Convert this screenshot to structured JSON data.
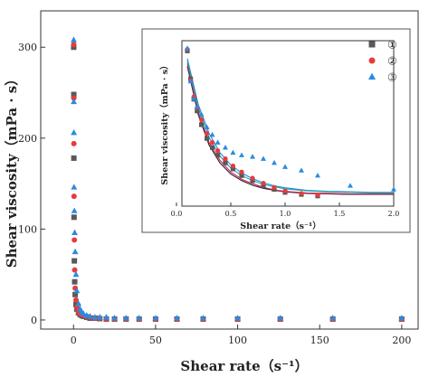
{
  "chart_data": [
    {
      "type": "scatter",
      "xlabel": "Shear rate（s⁻¹）",
      "ylabel": "Shear viscosity（mPa · s）",
      "xlim": [
        -20,
        210
      ],
      "ylim": [
        -10,
        340
      ],
      "xticks": [
        0,
        50,
        100,
        150,
        200
      ],
      "yticks": [
        0,
        100,
        200,
        300
      ],
      "series": [
        {
          "name": "①",
          "color": "#595959",
          "marker": "square",
          "points": [
            [
              0.1,
              300
            ],
            [
              0.15,
              248
            ],
            [
              0.2,
              178
            ],
            [
              0.3,
              113
            ],
            [
              0.5,
              65
            ],
            [
              0.7,
              42
            ],
            [
              1,
              28
            ],
            [
              1.5,
              17
            ],
            [
              2,
              12
            ],
            [
              3,
              8
            ],
            [
              4,
              6
            ],
            [
              5,
              5
            ],
            [
              6,
              4
            ],
            [
              8,
              3
            ],
            [
              10,
              2
            ],
            [
              13,
              2
            ],
            [
              16,
              1.5
            ],
            [
              20,
              1
            ],
            [
              25,
              1
            ],
            [
              32,
              1
            ],
            [
              40,
              1
            ],
            [
              50,
              1
            ],
            [
              63,
              1
            ],
            [
              79,
              1
            ],
            [
              100,
              1
            ],
            [
              126,
              1
            ],
            [
              158,
              1
            ],
            [
              200,
              1
            ]
          ]
        },
        {
          "name": "②",
          "color": "#e83b3b",
          "marker": "circle",
          "points": [
            [
              0.1,
              303
            ],
            [
              0.15,
              244
            ],
            [
              0.2,
              194
            ],
            [
              0.3,
              136
            ],
            [
              0.5,
              88
            ],
            [
              0.7,
              55
            ],
            [
              1,
              35
            ],
            [
              1.5,
              22
            ],
            [
              2,
              14
            ],
            [
              3,
              9
            ],
            [
              4,
              7
            ],
            [
              5,
              6
            ],
            [
              6,
              5
            ],
            [
              8,
              4
            ],
            [
              10,
              3
            ],
            [
              13,
              2
            ],
            [
              16,
              2
            ],
            [
              20,
              1
            ],
            [
              25,
              1
            ],
            [
              32,
              1
            ],
            [
              40,
              1
            ],
            [
              50,
              1
            ],
            [
              63,
              1
            ],
            [
              79,
              1
            ],
            [
              100,
              1
            ],
            [
              126,
              1
            ],
            [
              158,
              1
            ],
            [
              200,
              1
            ]
          ]
        },
        {
          "name": "③",
          "color": "#2a8be0",
          "marker": "triangle",
          "points": [
            [
              0.1,
              308
            ],
            [
              0.15,
              240
            ],
            [
              0.2,
              206
            ],
            [
              0.3,
              146
            ],
            [
              0.5,
              120
            ],
            [
              0.7,
              96
            ],
            [
              1,
              75
            ],
            [
              1.5,
              50
            ],
            [
              2,
              32
            ],
            [
              3,
              18
            ],
            [
              4,
              12
            ],
            [
              5,
              9
            ],
            [
              6,
              7
            ],
            [
              8,
              5
            ],
            [
              10,
              4
            ],
            [
              13,
              3
            ],
            [
              16,
              3
            ],
            [
              20,
              3
            ],
            [
              25,
              2
            ],
            [
              32,
              2
            ],
            [
              40,
              2
            ],
            [
              50,
              2
            ],
            [
              63,
              2
            ],
            [
              79,
              2
            ],
            [
              100,
              2
            ],
            [
              126,
              2
            ],
            [
              158,
              2
            ],
            [
              200,
              2
            ]
          ]
        }
      ]
    },
    {
      "type": "scatter",
      "xlabel": "Shear rate（s⁻¹）",
      "ylabel": "Shear viscosity（mPa · s）",
      "xlim": [
        0.05,
        2.0
      ],
      "ylim": [
        -5,
        320
      ],
      "xticks": [
        "0.0",
        "0.5",
        "1.0",
        "1.5",
        "2.0"
      ],
      "xtick_values": [
        0,
        0.5,
        1.0,
        1.5,
        2.0
      ],
      "series": [
        {
          "name": "①",
          "color": "#595959",
          "marker": "square",
          "points": [
            [
              0.1,
              300
            ],
            [
              0.13,
              245
            ],
            [
              0.16,
              205
            ],
            [
              0.19,
              182
            ],
            [
              0.23,
              155
            ],
            [
              0.28,
              128
            ],
            [
              0.33,
              110
            ],
            [
              0.38,
              95
            ],
            [
              0.45,
              80
            ],
            [
              0.52,
              68
            ],
            [
              0.6,
              55
            ],
            [
              0.7,
              45
            ],
            [
              0.8,
              35
            ],
            [
              0.9,
              28
            ],
            [
              1.0,
              22
            ],
            [
              1.15,
              18
            ],
            [
              1.3,
              15
            ]
          ]
        },
        {
          "name": "②",
          "color": "#e83b3b",
          "marker": "circle",
          "points": [
            [
              0.1,
              303
            ],
            [
              0.13,
              242
            ],
            [
              0.16,
              210
            ],
            [
              0.19,
              188
            ],
            [
              0.23,
              165
            ],
            [
              0.28,
              138
            ],
            [
              0.33,
              120
            ],
            [
              0.38,
              104
            ],
            [
              0.45,
              88
            ],
            [
              0.52,
              74
            ],
            [
              0.6,
              62
            ],
            [
              0.7,
              50
            ],
            [
              0.8,
              40
            ],
            [
              0.9,
              32
            ],
            [
              1.0,
              25
            ],
            [
              1.15,
              20
            ],
            [
              1.3,
              17
            ]
          ]
        },
        {
          "name": "③",
          "color": "#2a8be0",
          "marker": "triangle",
          "points": [
            [
              0.1,
              305
            ],
            [
              0.13,
              240
            ],
            [
              0.16,
              206
            ],
            [
              0.19,
              190
            ],
            [
              0.23,
              175
            ],
            [
              0.28,
              150
            ],
            [
              0.33,
              135
            ],
            [
              0.38,
              120
            ],
            [
              0.45,
              110
            ],
            [
              0.52,
              100
            ],
            [
              0.6,
              95
            ],
            [
              0.7,
              92
            ],
            [
              0.8,
              88
            ],
            [
              0.9,
              80
            ],
            [
              1.0,
              72
            ],
            [
              1.15,
              65
            ],
            [
              1.3,
              55
            ],
            [
              1.6,
              35
            ],
            [
              2.0,
              28
            ]
          ]
        }
      ],
      "fits": [
        {
          "color": "#222222",
          "points": [
            [
              0.1,
              270
            ],
            [
              0.2,
              175
            ],
            [
              0.3,
              115
            ],
            [
              0.4,
              80
            ],
            [
              0.5,
              58
            ],
            [
              0.6,
              45
            ],
            [
              0.7,
              36
            ],
            [
              0.8,
              30
            ],
            [
              0.9,
              26
            ],
            [
              1.0,
              23
            ],
            [
              1.2,
              20
            ],
            [
              1.4,
              19
            ],
            [
              1.6,
              18
            ],
            [
              1.8,
              18
            ],
            [
              2.0,
              18
            ]
          ]
        },
        {
          "color": "#d81b60",
          "points": [
            [
              0.1,
              275
            ],
            [
              0.2,
              180
            ],
            [
              0.3,
              120
            ],
            [
              0.4,
              85
            ],
            [
              0.5,
              62
            ],
            [
              0.6,
              48
            ],
            [
              0.7,
              39
            ],
            [
              0.8,
              32
            ],
            [
              0.9,
              27
            ],
            [
              1.0,
              24
            ],
            [
              1.2,
              21
            ],
            [
              1.4,
              20
            ],
            [
              1.6,
              19
            ],
            [
              1.8,
              19
            ],
            [
              2.0,
              19
            ]
          ]
        },
        {
          "color": "#1e88e5",
          "points": [
            [
              0.1,
              285
            ],
            [
              0.2,
              195
            ],
            [
              0.3,
              138
            ],
            [
              0.4,
              100
            ],
            [
              0.5,
              76
            ],
            [
              0.6,
              60
            ],
            [
              0.7,
              49
            ],
            [
              0.8,
              41
            ],
            [
              0.9,
              35
            ],
            [
              1.0,
              31
            ],
            [
              1.2,
              26
            ],
            [
              1.4,
              24
            ],
            [
              1.6,
              23
            ],
            [
              1.8,
              22
            ],
            [
              2.0,
              22
            ]
          ]
        },
        {
          "color": "#26a69a",
          "points": [
            [
              0.1,
              280
            ],
            [
              0.2,
              188
            ],
            [
              0.3,
              130
            ],
            [
              0.4,
              93
            ],
            [
              0.5,
              70
            ],
            [
              0.6,
              55
            ],
            [
              0.7,
              45
            ],
            [
              0.8,
              38
            ],
            [
              0.9,
              33
            ],
            [
              1.0,
              29
            ],
            [
              1.2,
              25
            ],
            [
              1.4,
              23
            ],
            [
              1.6,
              22
            ],
            [
              1.8,
              21
            ],
            [
              2.0,
              21
            ]
          ]
        }
      ]
    }
  ]
}
